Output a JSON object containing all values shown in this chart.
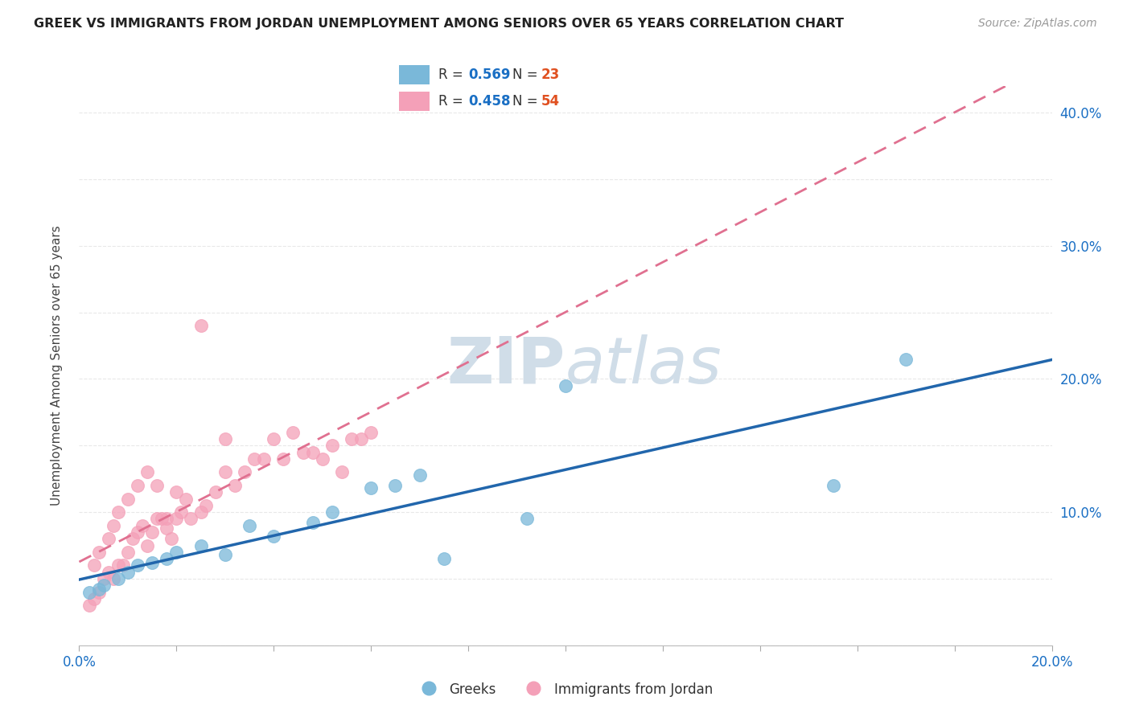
{
  "title": "GREEK VS IMMIGRANTS FROM JORDAN UNEMPLOYMENT AMONG SENIORS OVER 65 YEARS CORRELATION CHART",
  "source": "Source: ZipAtlas.com",
  "ylabel": "Unemployment Among Seniors over 65 years",
  "xlim": [
    0.0,
    0.2
  ],
  "ylim": [
    0.0,
    0.42
  ],
  "xticks": [
    0.0,
    0.02,
    0.04,
    0.06,
    0.08,
    0.1,
    0.12,
    0.14,
    0.16,
    0.18,
    0.2
  ],
  "yticks": [
    0.0,
    0.05,
    0.1,
    0.15,
    0.2,
    0.25,
    0.3,
    0.35,
    0.4
  ],
  "greek_color": "#7ab8d9",
  "jordan_color": "#f4a0b8",
  "greek_line_color": "#2166ac",
  "jordan_line_color": "#e07090",
  "jordan_line_style": "--",
  "greek_R": 0.569,
  "greek_N": 23,
  "jordan_R": 0.458,
  "jordan_N": 54,
  "legend_R_color": "#1a6fc4",
  "legend_N_color": "#e05020",
  "watermark_zip": "ZIP",
  "watermark_atlas": "atlas",
  "watermark_color": "#d0dde8",
  "greek_scatter_x": [
    0.002,
    0.004,
    0.005,
    0.008,
    0.01,
    0.012,
    0.015,
    0.018,
    0.02,
    0.025,
    0.03,
    0.035,
    0.04,
    0.048,
    0.052,
    0.06,
    0.065,
    0.07,
    0.075,
    0.092,
    0.1,
    0.155,
    0.17
  ],
  "greek_scatter_y": [
    0.04,
    0.042,
    0.045,
    0.05,
    0.055,
    0.06,
    0.062,
    0.065,
    0.07,
    0.075,
    0.068,
    0.09,
    0.082,
    0.092,
    0.1,
    0.118,
    0.12,
    0.128,
    0.065,
    0.095,
    0.195,
    0.12,
    0.215
  ],
  "jordan_scatter_x": [
    0.002,
    0.003,
    0.004,
    0.005,
    0.006,
    0.007,
    0.008,
    0.009,
    0.01,
    0.011,
    0.012,
    0.013,
    0.014,
    0.015,
    0.016,
    0.017,
    0.018,
    0.019,
    0.02,
    0.021,
    0.022,
    0.023,
    0.025,
    0.026,
    0.028,
    0.03,
    0.032,
    0.034,
    0.036,
    0.038,
    0.04,
    0.042,
    0.044,
    0.046,
    0.048,
    0.05,
    0.052,
    0.054,
    0.056,
    0.058,
    0.06,
    0.003,
    0.004,
    0.006,
    0.007,
    0.008,
    0.01,
    0.012,
    0.014,
    0.016,
    0.018,
    0.02,
    0.025,
    0.03
  ],
  "jordan_scatter_y": [
    0.03,
    0.035,
    0.04,
    0.05,
    0.055,
    0.05,
    0.06,
    0.06,
    0.07,
    0.08,
    0.085,
    0.09,
    0.075,
    0.085,
    0.095,
    0.095,
    0.088,
    0.08,
    0.095,
    0.1,
    0.11,
    0.095,
    0.1,
    0.105,
    0.115,
    0.13,
    0.12,
    0.13,
    0.14,
    0.14,
    0.155,
    0.14,
    0.16,
    0.145,
    0.145,
    0.14,
    0.15,
    0.13,
    0.155,
    0.155,
    0.16,
    0.06,
    0.07,
    0.08,
    0.09,
    0.1,
    0.11,
    0.12,
    0.13,
    0.12,
    0.095,
    0.115,
    0.24,
    0.155
  ],
  "background_color": "#ffffff",
  "grid_color": "#e8e8e8",
  "right_ytick_labels": [
    "",
    "",
    "10.0%",
    "",
    "20.0%",
    "",
    "30.0%",
    "",
    "40.0%"
  ]
}
